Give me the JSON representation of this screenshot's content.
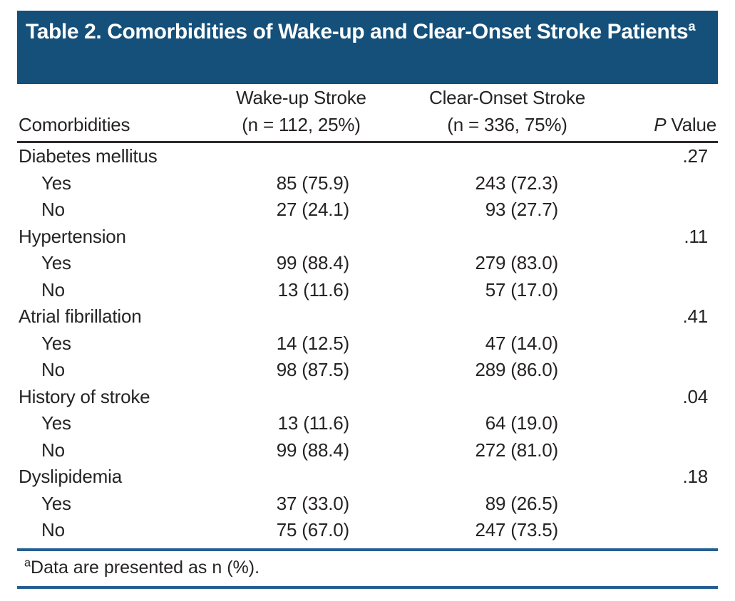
{
  "title": {
    "text": "Table 2. Comorbidities of Wake-up and Clear-Onset Stroke Patients",
    "superscript": "a"
  },
  "header": {
    "comorbidities": "Comorbidities",
    "wake_line1": "Wake-up Stroke",
    "wake_line2": "(n = 112, 25%)",
    "clear_line1": "Clear-Onset Stroke",
    "clear_line2": "(n = 336, 75%)",
    "p_italic": "P",
    "p_rest": " Value"
  },
  "sections": [
    {
      "label": "Diabetes mellitus",
      "p_value": ".27",
      "rows": [
        {
          "label": "Yes",
          "wake": "85 (75.9)",
          "clear": "243 (72.3)"
        },
        {
          "label": "No",
          "wake": "27 (24.1)",
          "clear": "93 (27.7)"
        }
      ]
    },
    {
      "label": "Hypertension",
      "p_value": ".11",
      "rows": [
        {
          "label": "Yes",
          "wake": "99 (88.4)",
          "clear": "279 (83.0)"
        },
        {
          "label": "No",
          "wake": "13 (11.6)",
          "clear": "57 (17.0)"
        }
      ]
    },
    {
      "label": "Atrial fibrillation",
      "p_value": ".41",
      "rows": [
        {
          "label": "Yes",
          "wake": "14 (12.5)",
          "clear": "47 (14.0)"
        },
        {
          "label": "No",
          "wake": "98 (87.5)",
          "clear": "289 (86.0)"
        }
      ]
    },
    {
      "label": "History of stroke",
      "p_value": ".04",
      "rows": [
        {
          "label": "Yes",
          "wake": "13 (11.6)",
          "clear": "64 (19.0)"
        },
        {
          "label": "No",
          "wake": "99 (88.4)",
          "clear": "272 (81.0)"
        }
      ]
    },
    {
      "label": "Dyslipidemia",
      "p_value": ".18",
      "rows": [
        {
          "label": "Yes",
          "wake": "37 (33.0)",
          "clear": "89 (26.5)"
        },
        {
          "label": "No",
          "wake": "75 (67.0)",
          "clear": "247 (73.5)"
        }
      ]
    }
  ],
  "footnote": {
    "superscript": "a",
    "text": "Data are presented as n (%)."
  },
  "colors": {
    "title_bar_blue": "#15507A",
    "rule_blue": "#255E94",
    "rule_dark": "#2D2A2B",
    "text": "#262324",
    "title_text": "#FFFFFF"
  }
}
